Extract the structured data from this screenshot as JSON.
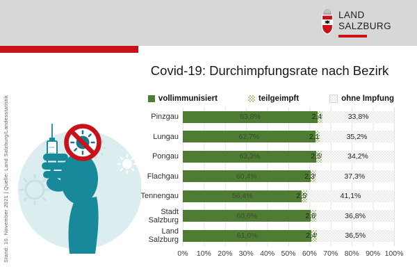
{
  "header": {
    "logo": {
      "line1": "LAND",
      "line2": "SALZBURG"
    }
  },
  "title": "Covid-19: Durchimpfungsrate nach Bezirk",
  "source_note": "Stand: 10. November 2021 | Quelle: Land Salzburg/Landesstatistik",
  "legend": {
    "items": [
      {
        "label": "vollimmunisiert",
        "color": "#4e7c33",
        "pattern": "solid"
      },
      {
        "label": "teilgeimpft",
        "color": "#a9cd85",
        "pattern": "checker"
      },
      {
        "label": "ohne Impfung",
        "color": "#ececea",
        "pattern": "checker"
      }
    ]
  },
  "chart_data": {
    "type": "bar",
    "orientation": "horizontal",
    "stacked": true,
    "title": "Covid-19: Durchimpfungsrate nach Bezirk",
    "categories": [
      "Pinzgau",
      "Lungau",
      "Pongau",
      "Flachgau",
      "Tennengau",
      "Stadt Salzburg",
      "Land Salzburg"
    ],
    "series": [
      {
        "name": "vollimmunisiert",
        "values": [
          63.8,
          62.7,
          63.3,
          60.4,
          56.4,
          60.6,
          61.0
        ],
        "labels": [
          "63,8%",
          "62,7%",
          "63,3%",
          "60,4%",
          "56,4%",
          "60,6%",
          "61,0%"
        ]
      },
      {
        "name": "teilgeimpft",
        "values": [
          2.4,
          2.1,
          2.5,
          2.3,
          2.5,
          2.6,
          2.4
        ],
        "labels": [
          "2,4%",
          "2,1%",
          "2,5%",
          "2,3%",
          "2,5%",
          "2,6%",
          "2,4%"
        ]
      },
      {
        "name": "ohne Impfung",
        "values": [
          33.8,
          35.2,
          34.2,
          37.3,
          41.1,
          36.8,
          36.5
        ],
        "labels": [
          "33,8%",
          "35,2%",
          "34,2%",
          "37,3%",
          "41,1%",
          "36,8%",
          "36,5%"
        ]
      }
    ],
    "x_ticks": [
      "0%",
      "10%",
      "20%",
      "30%",
      "40%",
      "50%",
      "60%",
      "70%",
      "80%",
      "90%",
      "100%"
    ],
    "xlim": [
      0,
      100
    ],
    "grid": true,
    "legend_position": "top"
  },
  "colors": {
    "header_band": "#d7d7d7",
    "accent_red": "#cb1118",
    "series_full": "#4e7c33",
    "series_partial": "#a9cd85",
    "series_none": "#ececea",
    "illustration_teal": "#17899b",
    "illustration_teal_light": "#dcedef"
  }
}
